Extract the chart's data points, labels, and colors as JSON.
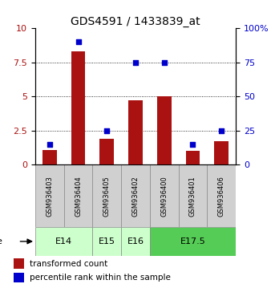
{
  "title": "GDS4591 / 1433839_at",
  "samples": [
    "GSM936403",
    "GSM936404",
    "GSM936405",
    "GSM936402",
    "GSM936400",
    "GSM936401",
    "GSM936406"
  ],
  "transformed_counts": [
    1.1,
    8.3,
    1.9,
    4.7,
    5.0,
    1.0,
    1.7
  ],
  "percentile_scaled": [
    1.5,
    9.0,
    2.5,
    7.5,
    7.5,
    1.5,
    2.5
  ],
  "age_groups": [
    {
      "label": "E14",
      "start": 0,
      "end": 2,
      "color": "#ccffcc"
    },
    {
      "label": "E15",
      "start": 2,
      "end": 3,
      "color": "#ccffcc"
    },
    {
      "label": "E16",
      "start": 3,
      "end": 4,
      "color": "#ccffcc"
    },
    {
      "label": "E17.5",
      "start": 4,
      "end": 7,
      "color": "#55cc55"
    }
  ],
  "ylim_left": [
    0,
    10
  ],
  "yticks_left": [
    0,
    2.5,
    5,
    7.5,
    10
  ],
  "yticks_right_labels": [
    "0",
    "25",
    "50",
    "75",
    "100%"
  ],
  "bar_color": "#aa1111",
  "dot_color": "#0000cc",
  "sample_box_color": "#d0d0d0",
  "legend_red": "transformed count",
  "legend_blue": "percentile rank within the sample"
}
